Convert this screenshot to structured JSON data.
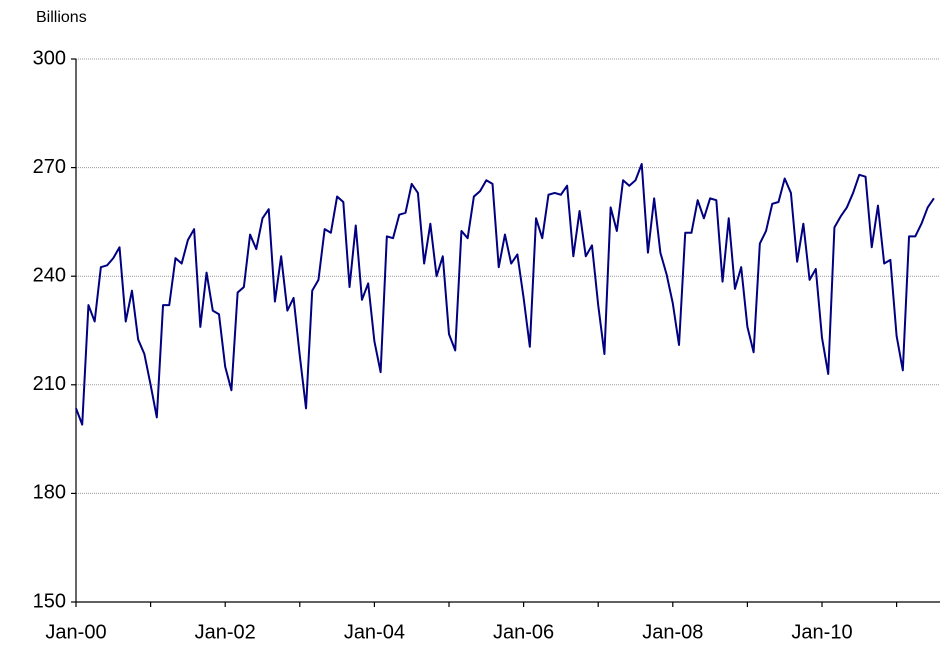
{
  "chart_data": {
    "type": "line",
    "y_label": "Billions",
    "categories": [
      "Jan-00",
      null,
      null,
      null,
      null,
      null,
      null,
      null,
      null,
      null,
      null,
      null,
      null,
      null,
      null,
      null,
      null,
      null,
      null,
      null,
      null,
      null,
      null,
      null,
      "Jan-02",
      null,
      null,
      null,
      null,
      null,
      null,
      null,
      null,
      null,
      null,
      null,
      null,
      null,
      null,
      null,
      null,
      null,
      null,
      null,
      null,
      null,
      null,
      null,
      "Jan-04",
      null,
      null,
      null,
      null,
      null,
      null,
      null,
      null,
      null,
      null,
      null,
      null,
      null,
      null,
      null,
      null,
      null,
      null,
      null,
      null,
      null,
      null,
      null,
      "Jan-06",
      null,
      null,
      null,
      null,
      null,
      null,
      null,
      null,
      null,
      null,
      null,
      null,
      null,
      null,
      null,
      null,
      null,
      null,
      null,
      null,
      null,
      null,
      null,
      "Jan-08",
      null,
      null,
      null,
      null,
      null,
      null,
      null,
      null,
      null,
      null,
      null,
      null,
      null,
      null,
      null,
      null,
      null,
      null,
      null,
      null,
      null,
      null,
      null,
      "Jan-10",
      null,
      null,
      null,
      null,
      null,
      null,
      null,
      null,
      null,
      null,
      null,
      null,
      null,
      null,
      null,
      null,
      null,
      null
    ],
    "values": [
      203.5,
      199,
      232,
      227.5,
      242.5,
      243,
      245,
      248,
      227.5,
      236,
      222.5,
      218.5,
      210,
      201,
      232,
      232,
      245,
      243.5,
      250,
      253,
      226,
      241,
      230.5,
      229.5,
      215,
      208.5,
      235.5,
      237,
      251.5,
      247.5,
      256,
      258.5,
      233,
      245.5,
      230.5,
      234,
      218,
      203.5,
      236,
      239,
      253,
      252,
      262,
      260.5,
      237,
      254,
      233.5,
      238,
      222,
      213.5,
      251,
      250.5,
      257,
      257.5,
      265.5,
      263,
      243.5,
      254.5,
      240,
      245.5,
      224,
      219.5,
      252.5,
      250.5,
      262,
      263.5,
      266.5,
      265.5,
      242.5,
      251.5,
      243.5,
      246,
      234,
      220.5,
      256,
      250.5,
      262.5,
      263,
      262.5,
      265,
      245.5,
      258,
      245.5,
      248.5,
      232,
      218.5,
      259,
      252.5,
      266.5,
      265,
      266.5,
      271,
      246.5,
      261.5,
      246.5,
      240.5,
      232.5,
      221,
      252,
      252,
      261,
      256,
      261.5,
      261,
      238.5,
      256,
      236.5,
      242.5,
      226,
      219,
      249,
      252.5,
      260,
      260.5,
      267,
      263,
      244,
      254.5,
      239,
      242,
      223,
      213,
      253.5,
      256.5,
      259,
      263,
      268,
      267.5,
      248,
      259.5,
      243.5,
      244.5,
      223.5,
      214,
      251,
      251,
      254.5,
      259,
      261.5
    ],
    "color": "#000080",
    "ylim": [
      150,
      300
    ],
    "yticks": [
      150,
      180,
      210,
      240,
      270,
      300
    ],
    "grid": true
  }
}
